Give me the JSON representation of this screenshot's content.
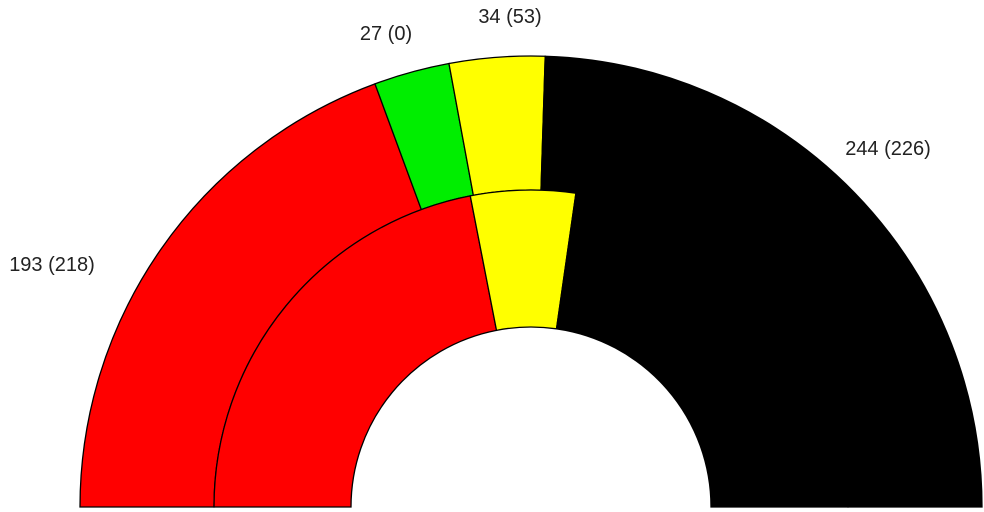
{
  "chart_data": {
    "type": "pie",
    "subtype": "semicircle-parliament-two-ring",
    "rings": [
      {
        "ring": "outer",
        "values": [
          193,
          27,
          34,
          244
        ]
      },
      {
        "ring": "inner",
        "values": [
          218,
          0,
          53,
          226
        ]
      }
    ],
    "colors": [
      "#ff0000",
      "#00ee00",
      "#ffff00",
      "#000000"
    ],
    "labels": [
      "193 (218)",
      "27 (0)",
      "34 (53)",
      "244 (226)"
    ]
  }
}
